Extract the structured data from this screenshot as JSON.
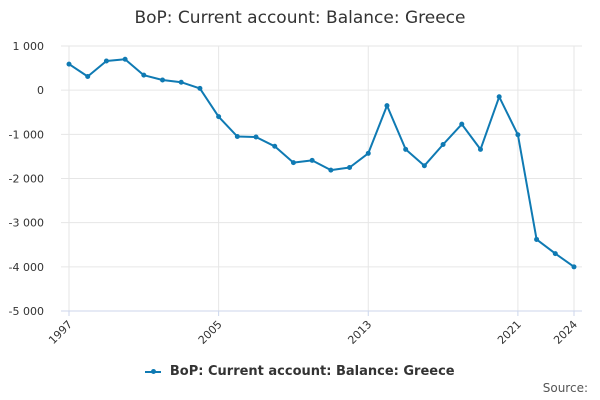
{
  "chart_data": {
    "type": "line",
    "title": "BoP: Current account: Balance: Greece",
    "xlabel": "",
    "ylabel": "",
    "x": [
      1997,
      1998,
      1999,
      2000,
      2001,
      2002,
      2003,
      2004,
      2005,
      2006,
      2007,
      2008,
      2009,
      2010,
      2011,
      2012,
      2013,
      2014,
      2015,
      2016,
      2017,
      2018,
      2019,
      2020,
      2021,
      2022,
      2023,
      2024
    ],
    "series": [
      {
        "name": "BoP: Current account: Balance: Greece",
        "values": [
          590,
          310,
          660,
          700,
          340,
          230,
          180,
          40,
          -600,
          -1050,
          -1060,
          -1270,
          -1640,
          -1590,
          -1810,
          -1750,
          -1430,
          -350,
          -1340,
          -1710,
          -1230,
          -770,
          -1340,
          -150,
          -1010,
          -3380,
          -3700,
          -4000
        ]
      }
    ],
    "ylim": [
      -5000,
      1000
    ],
    "xlim": [
      1997,
      2024
    ],
    "y_ticks": [
      1000,
      0,
      -1000,
      -2000,
      -3000,
      -4000,
      -5000
    ],
    "y_tick_labels": [
      "1 000",
      "0",
      "-1 000",
      "-2 000",
      "-3 000",
      "-4 000",
      "-5 000"
    ],
    "x_ticks": [
      1997,
      2005,
      2013,
      2021,
      2024
    ],
    "x_tick_labels": [
      "1997",
      "2005",
      "2013",
      "2021",
      "2024"
    ],
    "grid": true,
    "legend_position": "bottom",
    "line_color": "#0f7ab3",
    "grid_color": "#e6e6e6"
  },
  "source_label": "Source:"
}
